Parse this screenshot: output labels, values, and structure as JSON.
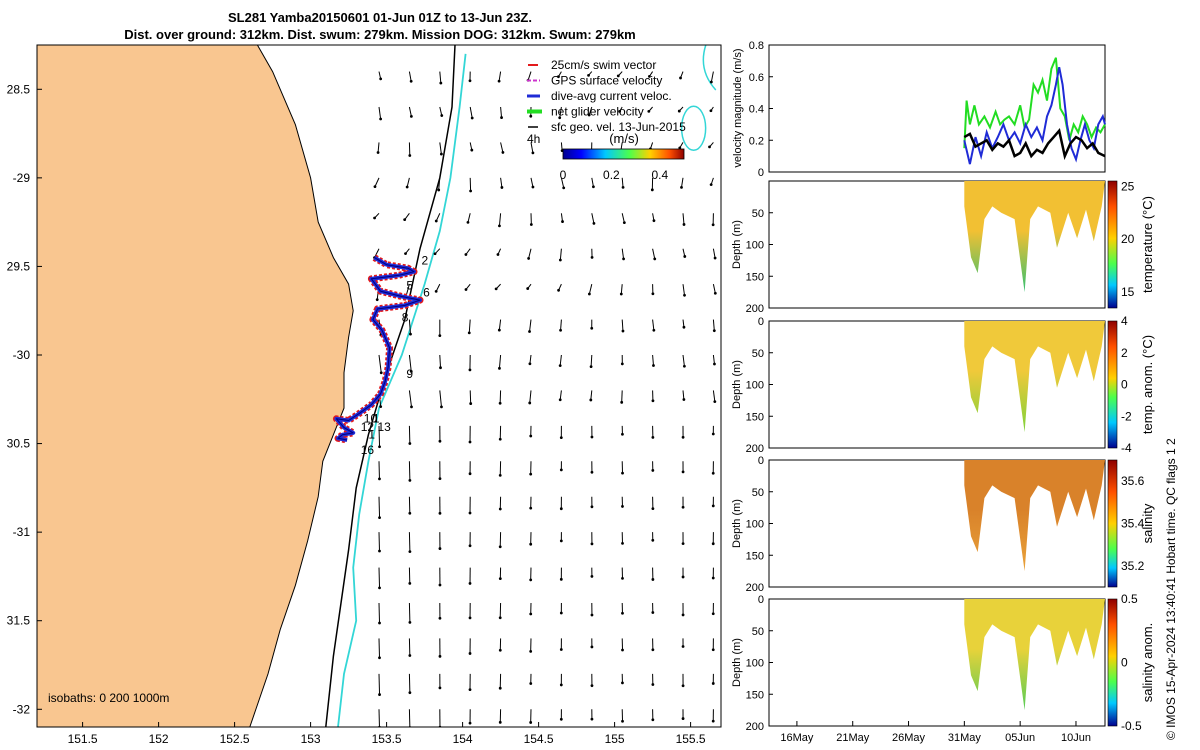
{
  "title_line1": "SL281 Yamba20150601 01-Jun 01Z to 13-Jun 23Z.",
  "title_line2": "Dist. over ground: 312km. Dist. swum: 279km. Mission DOG: 312km. Swum: 279km",
  "credit": "© IMOS 15-Apr-2024 13:40:41 Hobart time. QC flags 1  2",
  "colors": {
    "land": "#f9c690",
    "coast": "#000000",
    "isobath_200": "#000000",
    "isobath_1000": "#33d6d6",
    "swim": "#e31a1c",
    "gps": "#cc33cc",
    "dive_avg": "#1f2bd6",
    "net": "#22dd22",
    "geo": "#000000"
  },
  "chart_data": [
    {
      "type": "scatter",
      "name": "glider track map",
      "xlim": [
        151.2,
        155.7
      ],
      "ylim": [
        -32.1,
        -28.25
      ],
      "xticks": [
        151.5,
        152,
        152.5,
        153,
        153.5,
        154,
        154.5,
        155,
        155.5
      ],
      "xtick_labels": [
        "151.5",
        "152",
        "152.5",
        "153",
        "153.5",
        "154",
        "154.5",
        "155",
        "155.5"
      ],
      "yticks": [
        -28.5,
        -29,
        -29.5,
        -30,
        -30.5,
        -31,
        -31.5,
        -32
      ],
      "ytick_labels": [
        "28.5",
        "-29",
        "29.5",
        "-30",
        "30.5",
        "-31",
        "31.5",
        "-32"
      ],
      "legend": {
        "position": "top-right",
        "entries": [
          "25cm/s swim vector",
          "GPS surface velocity",
          "dive-avg current veloc.",
          "net glider velocity",
          "sfc geo. vel. 13-Jun-2015"
        ],
        "interval_label": "4h"
      },
      "colorbar": {
        "label": "(m/s)",
        "ticks": [
          0,
          0.2,
          0.4
        ],
        "tick_labels": [
          "0",
          "0.2",
          "0.4"
        ],
        "range": [
          0,
          0.5
        ]
      },
      "isobath_label": "isobaths: 0   200  1000m",
      "track": {
        "lon": [
          153.42,
          153.5,
          153.64,
          153.68,
          153.58,
          153.4,
          153.46,
          153.6,
          153.72,
          153.62,
          153.44,
          153.41,
          153.47,
          153.52,
          153.51,
          153.49,
          153.46,
          153.4,
          153.32,
          153.25,
          153.17,
          153.22,
          153.28,
          153.21,
          153.18,
          153.24
        ],
        "lat": [
          -29.45,
          -29.49,
          -29.51,
          -29.53,
          -29.55,
          -29.57,
          -29.64,
          -29.67,
          -29.69,
          -29.72,
          -29.74,
          -29.8,
          -29.86,
          -29.96,
          -30.07,
          -30.15,
          -30.22,
          -30.28,
          -30.33,
          -30.37,
          -30.36,
          -30.41,
          -30.44,
          -30.45,
          -30.47,
          -30.48
        ]
      },
      "day_labels": [
        {
          "text": "2",
          "lon": 153.73,
          "lat": -29.49
        },
        {
          "text": "5",
          "lon": 153.63,
          "lat": -29.63
        },
        {
          "text": "6",
          "lon": 153.74,
          "lat": -29.67
        },
        {
          "text": "8",
          "lon": 153.6,
          "lat": -29.81
        },
        {
          "text": "9",
          "lon": 153.63,
          "lat": -30.13
        },
        {
          "text": "10",
          "lon": 153.35,
          "lat": -30.38
        },
        {
          "text": "1",
          "lon": 153.41,
          "lat": -30.38
        },
        {
          "text": "12",
          "lon": 153.33,
          "lat": -30.43
        },
        {
          "text": "13",
          "lon": 153.44,
          "lat": -30.43
        },
        {
          "text": "1",
          "lon": 153.38,
          "lat": -30.47
        },
        {
          "text": "16",
          "lon": 153.33,
          "lat": -30.56
        }
      ]
    },
    {
      "type": "line",
      "name": "velocity magnitude panel",
      "ylabel": "velocity magnitude (m/s)",
      "ylim": [
        0,
        0.8
      ],
      "yticks": [
        0,
        0.2,
        0.4,
        0.6,
        0.8
      ],
      "ytick_labels": [
        "0",
        "0.2",
        "0.4",
        "0.6",
        "0.8"
      ],
      "x_day_range": [
        -17.5,
        12.6
      ],
      "series": [
        {
          "color": "#22dd22",
          "x": [
            0.0,
            0.2,
            0.5,
            0.9,
            1.3,
            1.8,
            2.3,
            2.8,
            3.2,
            3.6,
            4.0,
            4.5,
            5.0,
            5.4,
            5.8,
            6.2,
            6.6,
            7.0,
            7.4,
            7.8,
            8.2,
            8.6,
            9.0,
            9.4,
            9.8,
            10.2,
            10.6,
            11.0,
            11.4,
            11.8,
            12.2,
            12.6
          ],
          "y": [
            0.15,
            0.45,
            0.3,
            0.42,
            0.3,
            0.35,
            0.28,
            0.38,
            0.3,
            0.33,
            0.35,
            0.3,
            0.42,
            0.28,
            0.33,
            0.55,
            0.5,
            0.58,
            0.45,
            0.65,
            0.72,
            0.4,
            0.35,
            0.2,
            0.3,
            0.25,
            0.35,
            0.3,
            0.22,
            0.28,
            0.25,
            0.3
          ]
        },
        {
          "color": "#1f2bd6",
          "x": [
            0.0,
            0.5,
            1.0,
            1.5,
            2.0,
            2.5,
            3.0,
            3.5,
            4.0,
            4.5,
            5.0,
            5.5,
            6.0,
            6.5,
            7.0,
            7.4,
            7.8,
            8.2,
            8.5,
            8.8,
            9.2,
            9.6,
            10.0,
            10.4,
            10.8,
            11.2,
            11.6,
            12.0,
            12.4,
            12.6
          ],
          "y": [
            0.2,
            0.05,
            0.22,
            0.1,
            0.25,
            0.15,
            0.22,
            0.3,
            0.2,
            0.25,
            0.18,
            0.3,
            0.22,
            0.28,
            0.2,
            0.35,
            0.42,
            0.55,
            0.66,
            0.55,
            0.3,
            0.15,
            0.08,
            0.2,
            0.3,
            0.2,
            0.15,
            0.3,
            0.35,
            0.3
          ]
        },
        {
          "color": "#000000",
          "x": [
            0.0,
            0.5,
            1.0,
            1.5,
            2.0,
            2.5,
            3.0,
            3.5,
            4.0,
            4.5,
            5.0,
            5.5,
            6.0,
            6.5,
            7.0,
            7.5,
            8.0,
            8.5,
            9.0,
            9.5,
            10.0,
            10.5,
            11.0,
            11.5,
            12.0,
            12.6
          ],
          "y": [
            0.22,
            0.24,
            0.16,
            0.18,
            0.2,
            0.14,
            0.18,
            0.16,
            0.2,
            0.1,
            0.12,
            0.18,
            0.1,
            0.14,
            0.12,
            0.18,
            0.22,
            0.26,
            0.1,
            0.18,
            0.22,
            0.2,
            0.15,
            0.18,
            0.12,
            0.1
          ]
        }
      ]
    },
    {
      "type": "heatmap",
      "name": "temperature section",
      "ylabel": "Depth (m)",
      "ylim": [
        0,
        200
      ],
      "yticks": [
        0,
        50,
        100,
        150,
        200
      ],
      "ytick_labels": [
        "",
        "50",
        "100",
        "150",
        "200"
      ],
      "colorbar": {
        "label": "temperature (°C)",
        "ticks": [
          15,
          20,
          25
        ],
        "tick_labels": [
          "15",
          "20",
          "25"
        ],
        "range": [
          13.5,
          25.5
        ]
      },
      "fill_color": "#f2c033",
      "deep_color": "#33c070"
    },
    {
      "type": "heatmap",
      "name": "temperature anomaly section",
      "ylabel": "Depth (m)",
      "ylim": [
        0,
        200
      ],
      "yticks": [
        0,
        50,
        100,
        150,
        200
      ],
      "ytick_labels": [
        "0",
        "50",
        "100",
        "150",
        "200"
      ],
      "colorbar": {
        "label": "temp. anom. (°C)",
        "ticks": [
          -4,
          -2,
          0,
          2,
          4
        ],
        "tick_labels": [
          "-4",
          "-2",
          "0",
          "2",
          "4"
        ],
        "range": [
          -4,
          4
        ]
      },
      "fill_color": "#f0c93a",
      "deep_color": "#7ed23a"
    },
    {
      "type": "heatmap",
      "name": "salinity section",
      "ylabel": "Depth (m)",
      "ylim": [
        0,
        200
      ],
      "yticks": [
        0,
        50,
        100,
        150,
        200
      ],
      "ytick_labels": [
        "0",
        "50",
        "100",
        "150",
        "200"
      ],
      "colorbar": {
        "label": "salinity",
        "ticks": [
          35.2,
          35.4,
          35.6
        ],
        "tick_labels": [
          "35.2",
          "35.4",
          "35.6"
        ],
        "range": [
          35.1,
          35.7
        ]
      },
      "fill_color": "#d9822a",
      "deep_color": "#e9a23a"
    },
    {
      "type": "heatmap",
      "name": "salinity anomaly section",
      "ylabel": "Depth (m)",
      "ylim": [
        0,
        200
      ],
      "yticks": [
        0,
        50,
        100,
        150,
        200
      ],
      "ytick_labels": [
        "0",
        "50",
        "100",
        "150",
        "200"
      ],
      "xtick_labels": [
        "16May",
        "21May",
        "26May",
        "31May",
        "05Jun",
        "10Jun"
      ],
      "xtick_days": [
        -15,
        -10,
        -5,
        0,
        5,
        10
      ],
      "colorbar": {
        "label": "salinity anom.",
        "ticks": [
          -0.5,
          0,
          0.5
        ],
        "tick_labels": [
          "-0.5",
          "0",
          "0.5"
        ],
        "range": [
          -0.5,
          0.5
        ]
      },
      "fill_color": "#e8d23a",
      "deep_color": "#55cc55"
    }
  ]
}
